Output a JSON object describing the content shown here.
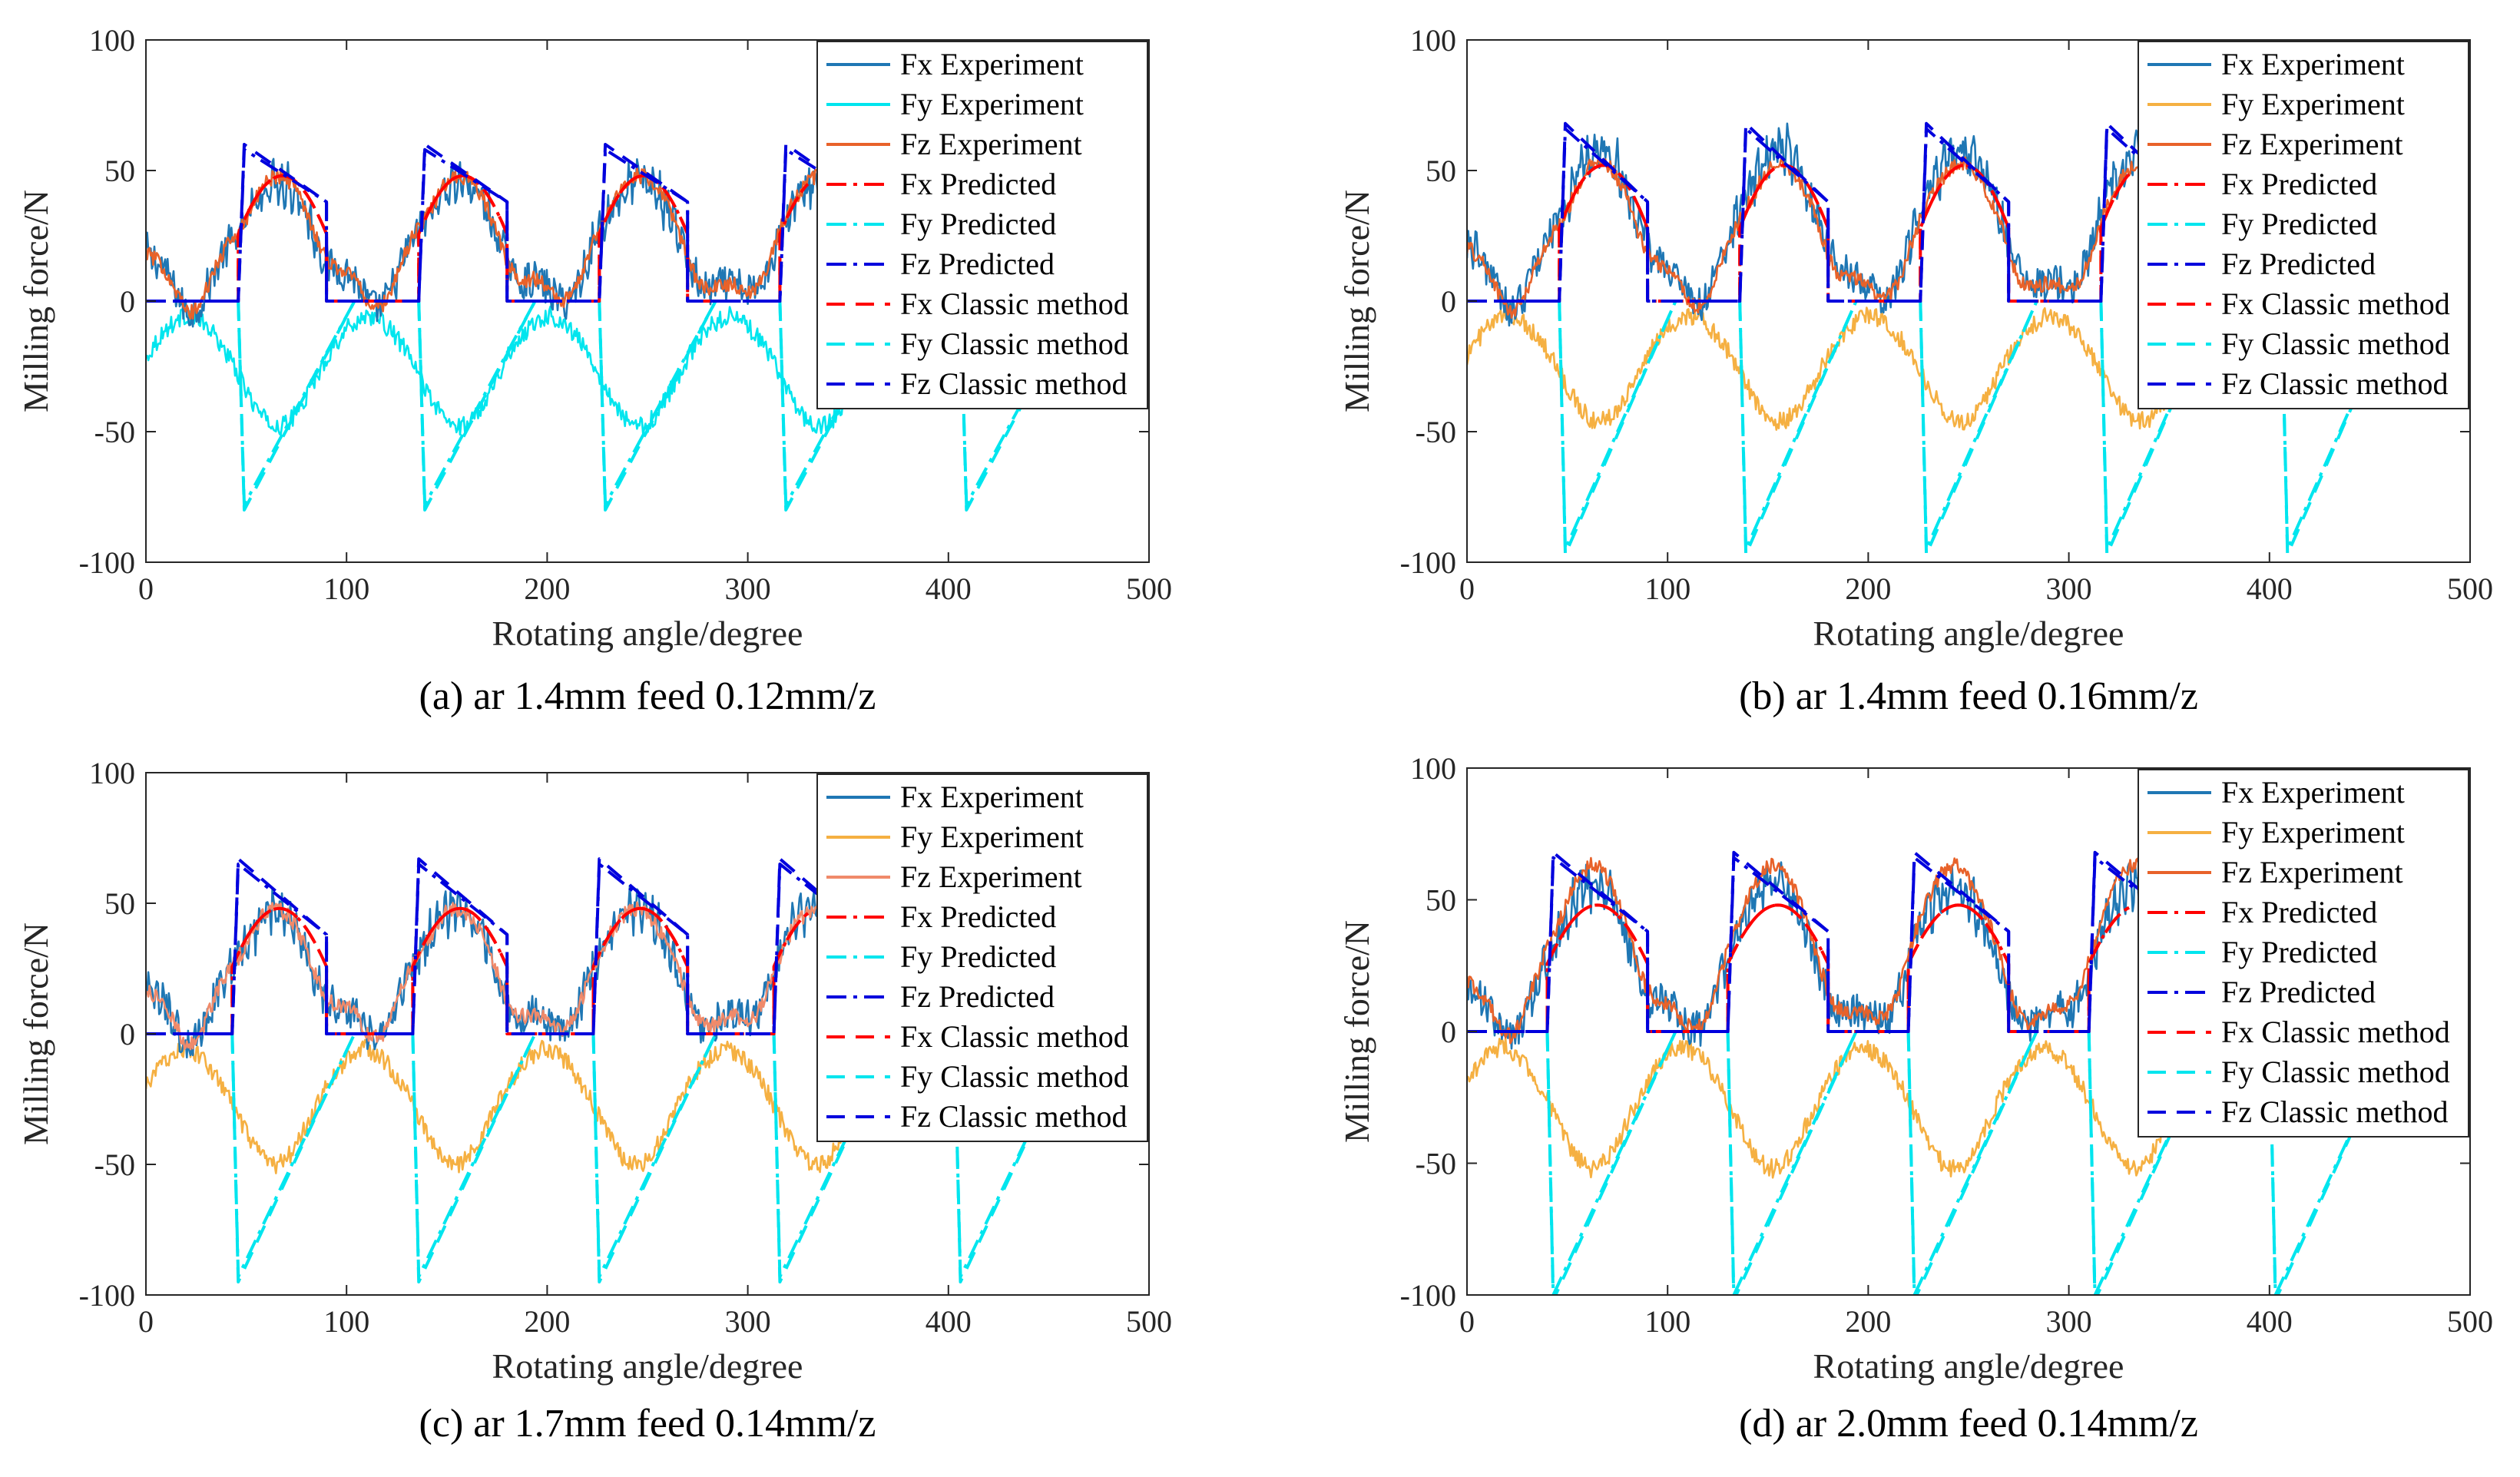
{
  "figure": {
    "background": "#ffffff"
  },
  "chart_data": [
    {
      "type": "line",
      "caption": "(a) ar 1.4mm feed 0.12mm/z",
      "xlabel": "Rotating angle/degree",
      "ylabel": "Milling force/N",
      "xlim": [
        0,
        500
      ],
      "ylim": [
        -100,
        100
      ],
      "xticks": [
        "0",
        "100",
        "200",
        "300",
        "400",
        "500"
      ],
      "yticks": [
        "-100",
        "-50",
        "0",
        "50",
        "100"
      ],
      "legend_position": "top-right",
      "engagement": {
        "period": 90,
        "entry": 46,
        "exit": 90
      },
      "series": [
        {
          "name": "Fx Experiment",
          "color": "#1f77b4",
          "style": "solid",
          "peak": 48
        },
        {
          "name": "Fy Experiment",
          "color": "#00e5ee",
          "style": "solid",
          "peak": -48
        },
        {
          "name": "Fz Experiment",
          "color": "#e8622a",
          "style": "solid",
          "peak": 50
        },
        {
          "name": "Fx Predicted",
          "color": "#ff0000",
          "style": "dashdot",
          "peak": 48
        },
        {
          "name": "Fy Predicted",
          "color": "#00e5ee",
          "style": "dashdot",
          "min": -78
        },
        {
          "name": "Fz Predicted",
          "color": "#0000dd",
          "style": "dashdot",
          "max": 58
        },
        {
          "name": "Fx Classic method",
          "color": "#ff0000",
          "style": "dashed",
          "peak": 48
        },
        {
          "name": "Fy Classic method",
          "color": "#00e5ee",
          "style": "dashed",
          "min": -80
        },
        {
          "name": "Fz Classic method",
          "color": "#0000dd",
          "style": "dashed",
          "max": 60
        }
      ]
    },
    {
      "type": "line",
      "caption": "(b) ar 1.4mm feed 0.16mm/z",
      "xlabel": "Rotating angle/degree",
      "ylabel": "Milling force/N",
      "xlim": [
        0,
        500
      ],
      "ylim": [
        -100,
        100
      ],
      "xticks": [
        "0",
        "100",
        "200",
        "300",
        "400",
        "500"
      ],
      "yticks": [
        "-100",
        "-50",
        "0",
        "50",
        "100"
      ],
      "legend_position": "top-right",
      "engagement": {
        "period": 90,
        "entry": 46,
        "exit": 90
      },
      "series": [
        {
          "name": "Fx Experiment",
          "color": "#1f77b4",
          "style": "solid",
          "peak": 60
        },
        {
          "name": "Fy Experiment",
          "color": "#f5b042",
          "style": "solid",
          "peak": -46
        },
        {
          "name": "Fz Experiment",
          "color": "#e8622a",
          "style": "solid",
          "peak": 55
        },
        {
          "name": "Fx Predicted",
          "color": "#ff0000",
          "style": "dashdot",
          "peak": 52
        },
        {
          "name": "Fy Predicted",
          "color": "#00e5ee",
          "style": "dashdot",
          "min": -95
        },
        {
          "name": "Fz Predicted",
          "color": "#0000dd",
          "style": "dashdot",
          "max": 66
        },
        {
          "name": "Fx Classic method",
          "color": "#ff0000",
          "style": "dashed",
          "peak": 52
        },
        {
          "name": "Fy Classic method",
          "color": "#00e5ee",
          "style": "dashed",
          "min": -97
        },
        {
          "name": "Fz Classic method",
          "color": "#0000dd",
          "style": "dashed",
          "max": 68
        }
      ]
    },
    {
      "type": "line",
      "caption": "(c) ar 1.7mm feed 0.14mm/z",
      "xlabel": "Rotating angle/degree",
      "ylabel": "Milling force/N",
      "xlim": [
        0,
        500
      ],
      "ylim": [
        -100,
        100
      ],
      "xticks": [
        "0",
        "100",
        "200",
        "300",
        "400",
        "500"
      ],
      "yticks": [
        "-100",
        "-50",
        "0",
        "50",
        "100"
      ],
      "legend_position": "top-right",
      "engagement": {
        "period": 90,
        "entry": 43,
        "exit": 90
      },
      "series": [
        {
          "name": "Fx Experiment",
          "color": "#1f77b4",
          "style": "solid",
          "peak": 50
        },
        {
          "name": "Fy Experiment",
          "color": "#f5b042",
          "style": "solid",
          "peak": -50
        },
        {
          "name": "Fz Experiment",
          "color": "#f08a6a",
          "style": "solid",
          "peak": 50
        },
        {
          "name": "Fx Predicted",
          "color": "#ff0000",
          "style": "dashdot",
          "peak": 48
        },
        {
          "name": "Fy Predicted",
          "color": "#00e5ee",
          "style": "dashdot",
          "min": -93
        },
        {
          "name": "Fz Predicted",
          "color": "#0000dd",
          "style": "dashdot",
          "max": 65
        },
        {
          "name": "Fx Classic method",
          "color": "#ff0000",
          "style": "dashed",
          "peak": 48
        },
        {
          "name": "Fy Classic method",
          "color": "#00e5ee",
          "style": "dashed",
          "min": -95
        },
        {
          "name": "Fz Classic method",
          "color": "#0000dd",
          "style": "dashed",
          "max": 67
        }
      ]
    },
    {
      "type": "line",
      "caption": "(d) ar 2.0mm feed 0.14mm/z",
      "xlabel": "Rotating angle/degree",
      "ylabel": "Milling force/N",
      "xlim": [
        0,
        500
      ],
      "ylim": [
        -100,
        100
      ],
      "xticks": [
        "0",
        "100",
        "200",
        "300",
        "400",
        "500"
      ],
      "yticks": [
        "-100",
        "-50",
        "0",
        "50",
        "100"
      ],
      "legend_position": "top-right",
      "engagement": {
        "period": 90,
        "entry": 40,
        "exit": 90
      },
      "series": [
        {
          "name": "Fx Experiment",
          "color": "#1f77b4",
          "style": "solid",
          "peak": 58
        },
        {
          "name": "Fy Experiment",
          "color": "#f5b042",
          "style": "solid",
          "peak": -52
        },
        {
          "name": "Fz Experiment",
          "color": "#e8622a",
          "style": "solid",
          "peak": 65
        },
        {
          "name": "Fx Predicted",
          "color": "#ff0000",
          "style": "dashdot",
          "peak": 48
        },
        {
          "name": "Fy Predicted",
          "color": "#00e5ee",
          "style": "dashdot",
          "min": -100
        },
        {
          "name": "Fz Predicted",
          "color": "#0000dd",
          "style": "dashdot",
          "max": 66
        },
        {
          "name": "Fx Classic method",
          "color": "#ff0000",
          "style": "dashed",
          "peak": 48
        },
        {
          "name": "Fy Classic method",
          "color": "#00e5ee",
          "style": "dashed",
          "min": -102
        },
        {
          "name": "Fz Classic method",
          "color": "#0000dd",
          "style": "dashed",
          "max": 68
        }
      ]
    }
  ]
}
